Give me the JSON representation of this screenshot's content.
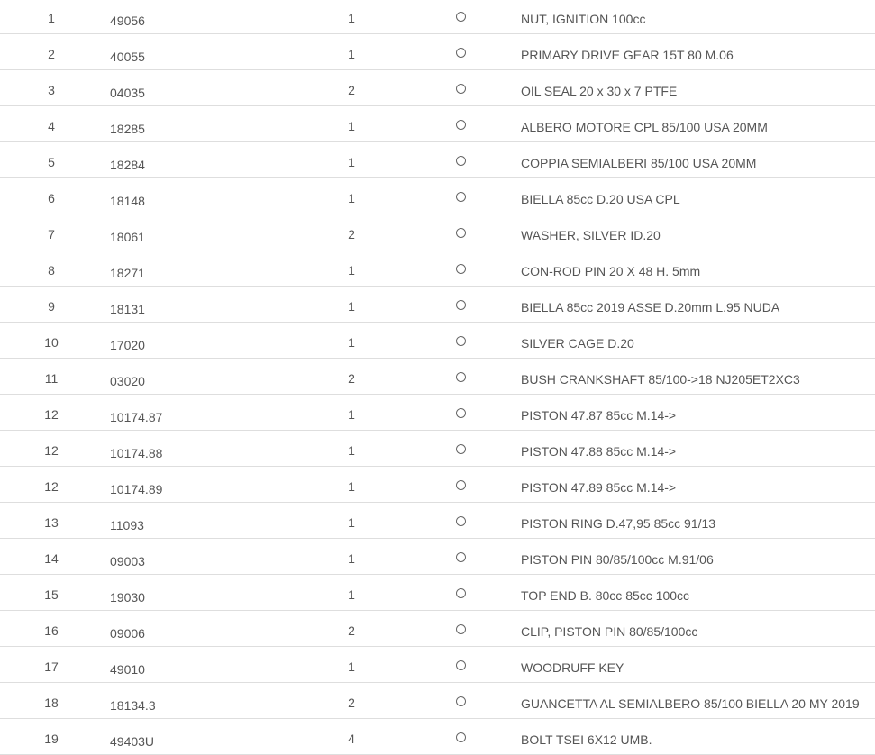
{
  "parts": [
    {
      "ref": "1",
      "code": "49056",
      "qty": "1",
      "description": "NUT, IGNITION 100cc"
    },
    {
      "ref": "2",
      "code": "40055",
      "qty": "1",
      "description": "PRIMARY DRIVE GEAR 15T 80 M.06"
    },
    {
      "ref": "3",
      "code": "04035",
      "qty": "2",
      "description": "OIL SEAL 20 x 30 x 7 PTFE"
    },
    {
      "ref": "4",
      "code": "18285",
      "qty": "1",
      "description": "ALBERO MOTORE CPL 85/100 USA 20MM"
    },
    {
      "ref": "5",
      "code": "18284",
      "qty": "1",
      "description": "COPPIA SEMIALBERI 85/100 USA 20MM"
    },
    {
      "ref": "6",
      "code": "18148",
      "qty": "1",
      "description": "BIELLA 85cc D.20 USA CPL"
    },
    {
      "ref": "7",
      "code": "18061",
      "qty": "2",
      "description": "WASHER, SILVER ID.20"
    },
    {
      "ref": "8",
      "code": "18271",
      "qty": "1",
      "description": "CON-ROD PIN 20 X 48 H. 5mm"
    },
    {
      "ref": "9",
      "code": "18131",
      "qty": "1",
      "description": "BIELLA 85cc 2019 ASSE D.20mm L.95 NUDA"
    },
    {
      "ref": "10",
      "code": "17020",
      "qty": "1",
      "description": "SILVER CAGE D.20"
    },
    {
      "ref": "11",
      "code": "03020",
      "qty": "2",
      "description": "BUSH CRANKSHAFT 85/100->18 NJ205ET2XC3"
    },
    {
      "ref": "12",
      "code": "10174.87",
      "qty": "1",
      "description": "PISTON 47.87 85cc M.14->"
    },
    {
      "ref": "12",
      "code": "10174.88",
      "qty": "1",
      "description": "PISTON 47.88 85cc M.14->"
    },
    {
      "ref": "12",
      "code": "10174.89",
      "qty": "1",
      "description": "PISTON 47.89 85cc M.14->"
    },
    {
      "ref": "13",
      "code": "11093",
      "qty": "1",
      "description": "PISTON RING D.47,95 85cc 91/13"
    },
    {
      "ref": "14",
      "code": "09003",
      "qty": "1",
      "description": "PISTON PIN 80/85/100cc M.91/06"
    },
    {
      "ref": "15",
      "code": "19030",
      "qty": "1",
      "description": "TOP END B. 80cc 85cc 100cc"
    },
    {
      "ref": "16",
      "code": "09006",
      "qty": "2",
      "description": "CLIP, PISTON PIN 80/85/100cc"
    },
    {
      "ref": "17",
      "code": "49010",
      "qty": "1",
      "description": "WOODRUFF KEY"
    },
    {
      "ref": "18",
      "code": "18134.3",
      "qty": "2",
      "description": "GUANCETTA AL SEMIALBERO 85/100 BIELLA 20 MY 2019"
    },
    {
      "ref": "19",
      "code": "49403U",
      "qty": "4",
      "description": "BOLT TSEI 6X12 UMB."
    }
  ]
}
